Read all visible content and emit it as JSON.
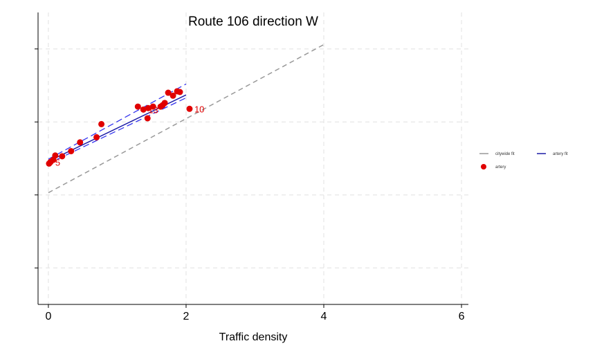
{
  "chart_data": {
    "type": "scatter",
    "title": "Route 106 direction W",
    "xlabel": "Traffic density",
    "ylabel": "",
    "xlim": [
      -0.15,
      6.1
    ],
    "ylim": [
      -0.5,
      3.5
    ],
    "xticks": [
      0,
      2,
      4,
      6
    ],
    "xtick_labels": [
      "0",
      "2",
      "4",
      "6"
    ],
    "yticks": [
      0,
      1,
      2,
      3
    ],
    "yticks_labeled": false,
    "grid": true,
    "legend_position": "right",
    "series": [
      {
        "name": "artery",
        "kind": "scatter",
        "color": "#e00000",
        "points": [
          {
            "x": 0.01,
            "y": 1.43
          },
          {
            "x": 0.03,
            "y": 1.45,
            "label": "5"
          },
          {
            "x": 0.07,
            "y": 1.48
          },
          {
            "x": 0.1,
            "y": 1.54
          },
          {
            "x": 0.2,
            "y": 1.53
          },
          {
            "x": 0.33,
            "y": 1.6
          },
          {
            "x": 0.46,
            "y": 1.72
          },
          {
            "x": 0.7,
            "y": 1.79
          },
          {
            "x": 0.77,
            "y": 1.97
          },
          {
            "x": 1.3,
            "y": 2.21
          },
          {
            "x": 1.38,
            "y": 2.17,
            "label": "13"
          },
          {
            "x": 1.44,
            "y": 2.05
          },
          {
            "x": 1.45,
            "y": 2.19
          },
          {
            "x": 1.52,
            "y": 2.21
          },
          {
            "x": 1.63,
            "y": 2.21
          },
          {
            "x": 1.66,
            "y": 2.23
          },
          {
            "x": 1.69,
            "y": 2.26
          },
          {
            "x": 1.74,
            "y": 2.4
          },
          {
            "x": 1.81,
            "y": 2.36
          },
          {
            "x": 1.87,
            "y": 2.42
          },
          {
            "x": 1.91,
            "y": 2.41
          },
          {
            "x": 2.05,
            "y": 2.18,
            "label": "10"
          }
        ]
      },
      {
        "name": "citywide fit",
        "kind": "line",
        "color": "#999999",
        "dash": "dashed",
        "points": [
          {
            "x": 0,
            "y": 1.03
          },
          {
            "x": 4,
            "y": 3.06
          }
        ]
      },
      {
        "name": "artery fit",
        "kind": "line",
        "color": "#1a1aa6",
        "points": [
          {
            "x": 0,
            "y": 1.46
          },
          {
            "x": 2,
            "y": 2.37
          }
        ],
        "band_upper": [
          {
            "x": 0,
            "y": 1.49
          },
          {
            "x": 2,
            "y": 2.52
          }
        ],
        "band_lower": [
          {
            "x": 0,
            "y": 1.43
          },
          {
            "x": 2,
            "y": 2.33
          }
        ],
        "band_color": "#3333ee"
      }
    ],
    "legend": [
      {
        "label": "citywide fit",
        "symbol": "line",
        "color": "#999999"
      },
      {
        "label": "artery fit",
        "symbol": "line",
        "color": "#1a1aa6"
      },
      {
        "label": "artery",
        "symbol": "dot",
        "color": "#e00000"
      }
    ]
  }
}
